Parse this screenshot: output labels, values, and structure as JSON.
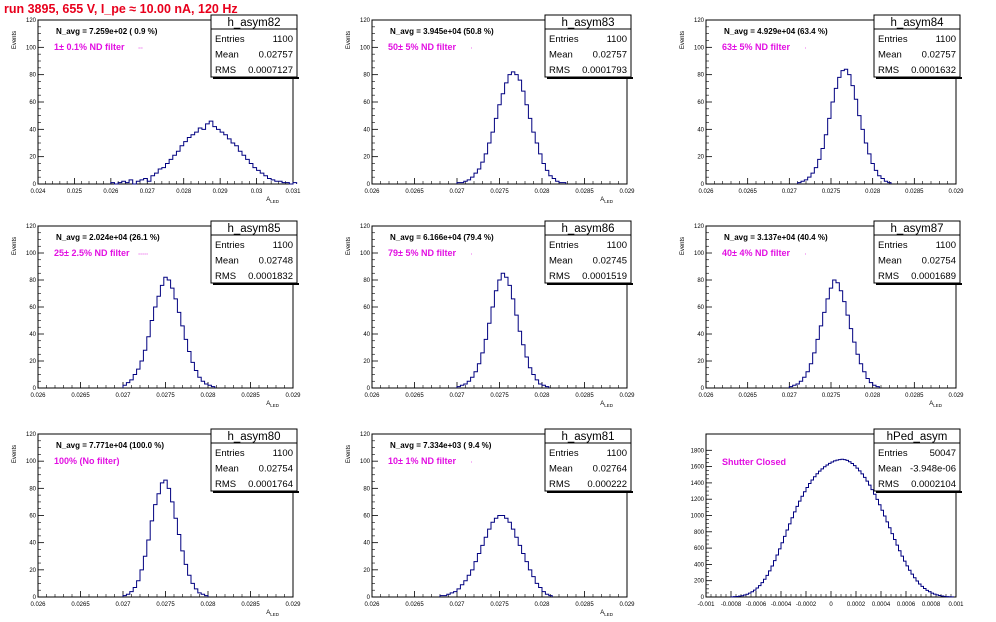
{
  "title": "run 3895,   655 V, I_pe ≈ 10.00 nA, 120 Hz",
  "colors": {
    "title": "#e8001c",
    "hist": "#000080",
    "filter_label": "#e20fe2"
  },
  "chart_data": [
    {
      "type": "bar",
      "name": "h_asym82",
      "ylabel": "Events",
      "xlabel": "A_{LED}",
      "xlim": [
        0.024,
        0.031
      ],
      "ylim": [
        0,
        120
      ],
      "xticks": [
        "0.024",
        "0.025",
        "0.026",
        "0.027",
        "0.028",
        "0.029",
        "0.03",
        "0.031"
      ],
      "yticks": [
        "0",
        "20",
        "40",
        "60",
        "80",
        "100",
        "120"
      ],
      "annotation": "N_avg = 7.259e+02 ( 0.9 %)",
      "filter_label": "1± 0.1% ND filter",
      "stats": {
        "entries_label": "Entries",
        "entries": "1100",
        "mean_label": "Mean",
        "mean": "0.02757",
        "rms_label": "RMS",
        "rms": "0.0007127"
      },
      "bin_start": 0.026,
      "bin_width": 0.0001,
      "values": [
        1,
        0,
        1,
        2,
        1,
        3,
        0,
        2,
        3,
        4,
        2,
        6,
        8,
        11,
        12,
        15,
        18,
        21,
        24,
        28,
        31,
        34,
        36,
        38,
        41,
        40,
        44,
        46,
        42,
        40,
        38,
        36,
        33,
        30,
        28,
        24,
        21,
        18,
        15,
        12,
        10,
        8,
        6,
        4,
        3,
        2,
        2,
        1,
        1,
        0,
        1
      ]
    },
    {
      "type": "bar",
      "name": "h_asym83",
      "ylabel": "Events",
      "xlabel": "A_{LED}",
      "xlim": [
        0.026,
        0.029
      ],
      "ylim": [
        0,
        120
      ],
      "xticks": [
        "0.026",
        "0.0265",
        "0.027",
        "0.0275",
        "0.028",
        "0.0285",
        "0.029"
      ],
      "yticks": [
        "0",
        "20",
        "40",
        "60",
        "80",
        "100",
        "120"
      ],
      "annotation": "N_avg = 3.945e+04 (50.8 %)",
      "filter_label": "50± 5% ND filter",
      "stats": {
        "entries_label": "Entries",
        "entries": "1100",
        "mean_label": "Mean",
        "mean": "0.02757",
        "rms_label": "RMS",
        "rms": "0.0001793"
      },
      "bin_start": 0.027,
      "bin_width": 4e-05,
      "values": [
        1,
        1,
        2,
        3,
        5,
        8,
        11,
        16,
        22,
        30,
        38,
        48,
        58,
        66,
        74,
        80,
        82,
        80,
        76,
        68,
        58,
        48,
        38,
        30,
        22,
        15,
        10,
        6,
        4,
        2,
        1,
        1
      ]
    },
    {
      "type": "bar",
      "name": "h_asym84",
      "ylabel": "Events",
      "xlabel": "",
      "xlim": [
        0.026,
        0.029
      ],
      "ylim": [
        0,
        120
      ],
      "xticks": [
        "0.026",
        "0.0265",
        "0.027",
        "0.0275",
        "0.028",
        "0.0285",
        "0.029"
      ],
      "yticks": [
        "0",
        "20",
        "40",
        "60",
        "80",
        "100",
        "120"
      ],
      "annotation": "N_avg = 4.929e+04 (63.4 %)",
      "filter_label": "63± 5% ND filter",
      "stats": {
        "entries_label": "Entries",
        "entries": "1100",
        "mean_label": "Mean",
        "mean": "0.02757",
        "rms_label": "RMS",
        "rms": "0.0001632"
      },
      "bin_start": 0.0271,
      "bin_width": 4e-05,
      "values": [
        1,
        2,
        3,
        5,
        8,
        12,
        18,
        26,
        36,
        48,
        60,
        70,
        78,
        83,
        84,
        80,
        72,
        62,
        50,
        40,
        30,
        22,
        15,
        10,
        6,
        4,
        2,
        1
      ]
    },
    {
      "type": "bar",
      "name": "h_asym85",
      "ylabel": "Events",
      "xlabel": "A_{LED}",
      "xlim": [
        0.026,
        0.029
      ],
      "ylim": [
        0,
        120
      ],
      "xticks": [
        "0.026",
        "0.0265",
        "0.027",
        "0.0275",
        "0.028",
        "0.0285",
        "0.029"
      ],
      "yticks": [
        "0",
        "20",
        "40",
        "60",
        "80",
        "100",
        "120"
      ],
      "annotation": "N_avg = 2.024e+04 (26.1 %)",
      "filter_label": "25± 2.5% ND filter",
      "stats": {
        "entries_label": "Entries",
        "entries": "1100",
        "mean_label": "Mean",
        "mean": "0.02748",
        "rms_label": "RMS",
        "rms": "0.0001832"
      },
      "bin_start": 0.027,
      "bin_width": 4e-05,
      "values": [
        2,
        4,
        6,
        10,
        14,
        20,
        28,
        38,
        50,
        60,
        68,
        76,
        82,
        80,
        74,
        66,
        56,
        46,
        36,
        27,
        19,
        13,
        8,
        5,
        3,
        2,
        1
      ]
    },
    {
      "type": "bar",
      "name": "h_asym86",
      "ylabel": "Events",
      "xlabel": "A_{LED}",
      "xlim": [
        0.026,
        0.029
      ],
      "ylim": [
        0,
        120
      ],
      "xticks": [
        "0.026",
        "0.0265",
        "0.027",
        "0.0275",
        "0.028",
        "0.0285",
        "0.029"
      ],
      "yticks": [
        "0",
        "20",
        "40",
        "60",
        "80",
        "100",
        "120"
      ],
      "annotation": "N_avg = 6.166e+04 (79.4 %)",
      "filter_label": "79± 5% ND filter",
      "stats": {
        "entries_label": "Entries",
        "entries": "1100",
        "mean_label": "Mean",
        "mean": "0.02745",
        "rms_label": "RMS",
        "rms": "0.0001519"
      },
      "bin_start": 0.027,
      "bin_width": 4e-05,
      "values": [
        1,
        2,
        3,
        5,
        8,
        12,
        18,
        26,
        36,
        48,
        60,
        72,
        80,
        85,
        82,
        76,
        66,
        54,
        42,
        32,
        23,
        15,
        10,
        6,
        3,
        2,
        1
      ]
    },
    {
      "type": "bar",
      "name": "h_asym87",
      "ylabel": "Events",
      "xlabel": "A_{LED}",
      "xlim": [
        0.026,
        0.029
      ],
      "ylim": [
        0,
        120
      ],
      "xticks": [
        "0.026",
        "0.0265",
        "0.027",
        "0.0275",
        "0.028",
        "0.0285",
        "0.029"
      ],
      "yticks": [
        "0",
        "20",
        "40",
        "60",
        "80",
        "100",
        "120"
      ],
      "annotation": "N_avg = 3.137e+04 (40.4 %)",
      "filter_label": "40± 4% ND filter",
      "stats": {
        "entries_label": "Entries",
        "entries": "1100",
        "mean_label": "Mean",
        "mean": "0.02754",
        "rms_label": "RMS",
        "rms": "0.0001689"
      },
      "bin_start": 0.027,
      "bin_width": 4e-05,
      "values": [
        1,
        2,
        3,
        5,
        8,
        12,
        18,
        26,
        36,
        46,
        56,
        66,
        74,
        80,
        78,
        72,
        64,
        54,
        44,
        34,
        25,
        18,
        12,
        7,
        4,
        2,
        1
      ]
    },
    {
      "type": "bar",
      "name": "h_asym80",
      "ylabel": "Events",
      "xlabel": "A_{LED}",
      "xlim": [
        0.026,
        0.029
      ],
      "ylim": [
        0,
        120
      ],
      "xticks": [
        "0.026",
        "0.0265",
        "0.027",
        "0.0275",
        "0.028",
        "0.0285",
        "0.029"
      ],
      "yticks": [
        "0",
        "20",
        "40",
        "60",
        "80",
        "100",
        "120"
      ],
      "annotation": "N_avg = 7.771e+04 (100.0 %)",
      "filter_label": "100% (No filter)",
      "stats": {
        "entries_label": "Entries",
        "entries": "1100",
        "mean_label": "Mean",
        "mean": "0.02754",
        "rms_label": "RMS",
        "rms": "0.0001764"
      },
      "bin_start": 0.027,
      "bin_width": 4e-05,
      "values": [
        1,
        2,
        4,
        7,
        12,
        20,
        30,
        42,
        56,
        68,
        76,
        84,
        86,
        80,
        70,
        58,
        46,
        34,
        24,
        16,
        10,
        6,
        3,
        2,
        1
      ]
    },
    {
      "type": "bar",
      "name": "h_asym81",
      "ylabel": "Events",
      "xlabel": "A_{LED}",
      "xlim": [
        0.026,
        0.029
      ],
      "ylim": [
        0,
        120
      ],
      "xticks": [
        "0.026",
        "0.0265",
        "0.027",
        "0.0275",
        "0.028",
        "0.0285",
        "0.029"
      ],
      "yticks": [
        "0",
        "20",
        "40",
        "60",
        "80",
        "100",
        "120"
      ],
      "annotation": "N_avg = 7.334e+03 ( 9.4 %)",
      "filter_label": "10± 1% ND filter",
      "stats": {
        "entries_label": "Entries",
        "entries": "1100",
        "mean_label": "Mean",
        "mean": "0.02764",
        "rms_label": "RMS",
        "rms": "0.000222"
      },
      "bin_start": 0.0268,
      "bin_width": 4e-05,
      "values": [
        1,
        1,
        2,
        3,
        4,
        6,
        9,
        12,
        16,
        20,
        26,
        32,
        38,
        44,
        50,
        55,
        58,
        60,
        60,
        58,
        55,
        50,
        44,
        38,
        32,
        26,
        20,
        15,
        10,
        7,
        4,
        2,
        1
      ]
    },
    {
      "type": "bar",
      "name": "hPed_asym",
      "ylabel": "",
      "xlabel": "",
      "xlim": [
        -0.001,
        0.001
      ],
      "ylim": [
        0,
        2000
      ],
      "xticks": [
        "-0.001",
        "-0.0008",
        "-0.0006",
        "-0.0004",
        "-0.0002",
        "0",
        "0.0002",
        "0.0004",
        "0.0006",
        "0.0008",
        "0.001"
      ],
      "yticks": [
        "0",
        "200",
        "400",
        "600",
        "800",
        "1000",
        "1200",
        "1400",
        "1600",
        "1800"
      ],
      "annotation": "",
      "filter_label": "Shutter Closed",
      "stats": {
        "entries_label": "Entries",
        "entries": "50047",
        "mean_label": "Mean",
        "mean": "-3.948e-06",
        "rms_label": "RMS",
        "rms": "0.0002104"
      },
      "bin_start": -0.0008,
      "bin_width": 2e-05,
      "values": [
        2,
        4,
        6,
        10,
        16,
        24,
        34,
        48,
        64,
        84,
        110,
        140,
        176,
        218,
        266,
        320,
        380,
        446,
        516,
        590,
        666,
        744,
        822,
        898,
        972,
        1044,
        1112,
        1176,
        1236,
        1292,
        1344,
        1392,
        1436,
        1476,
        1512,
        1544,
        1572,
        1598,
        1620,
        1640,
        1656,
        1670,
        1680,
        1686,
        1690,
        1686,
        1676,
        1660,
        1638,
        1612,
        1582,
        1548,
        1510,
        1468,
        1422,
        1372,
        1318,
        1260,
        1198,
        1132,
        1064,
        994,
        922,
        850,
        778,
        706,
        636,
        568,
        502,
        440,
        382,
        328,
        280,
        236,
        196,
        160,
        130,
        104,
        82,
        64,
        48,
        36,
        26,
        18,
        12,
        8,
        5,
        3,
        2
      ]
    }
  ]
}
